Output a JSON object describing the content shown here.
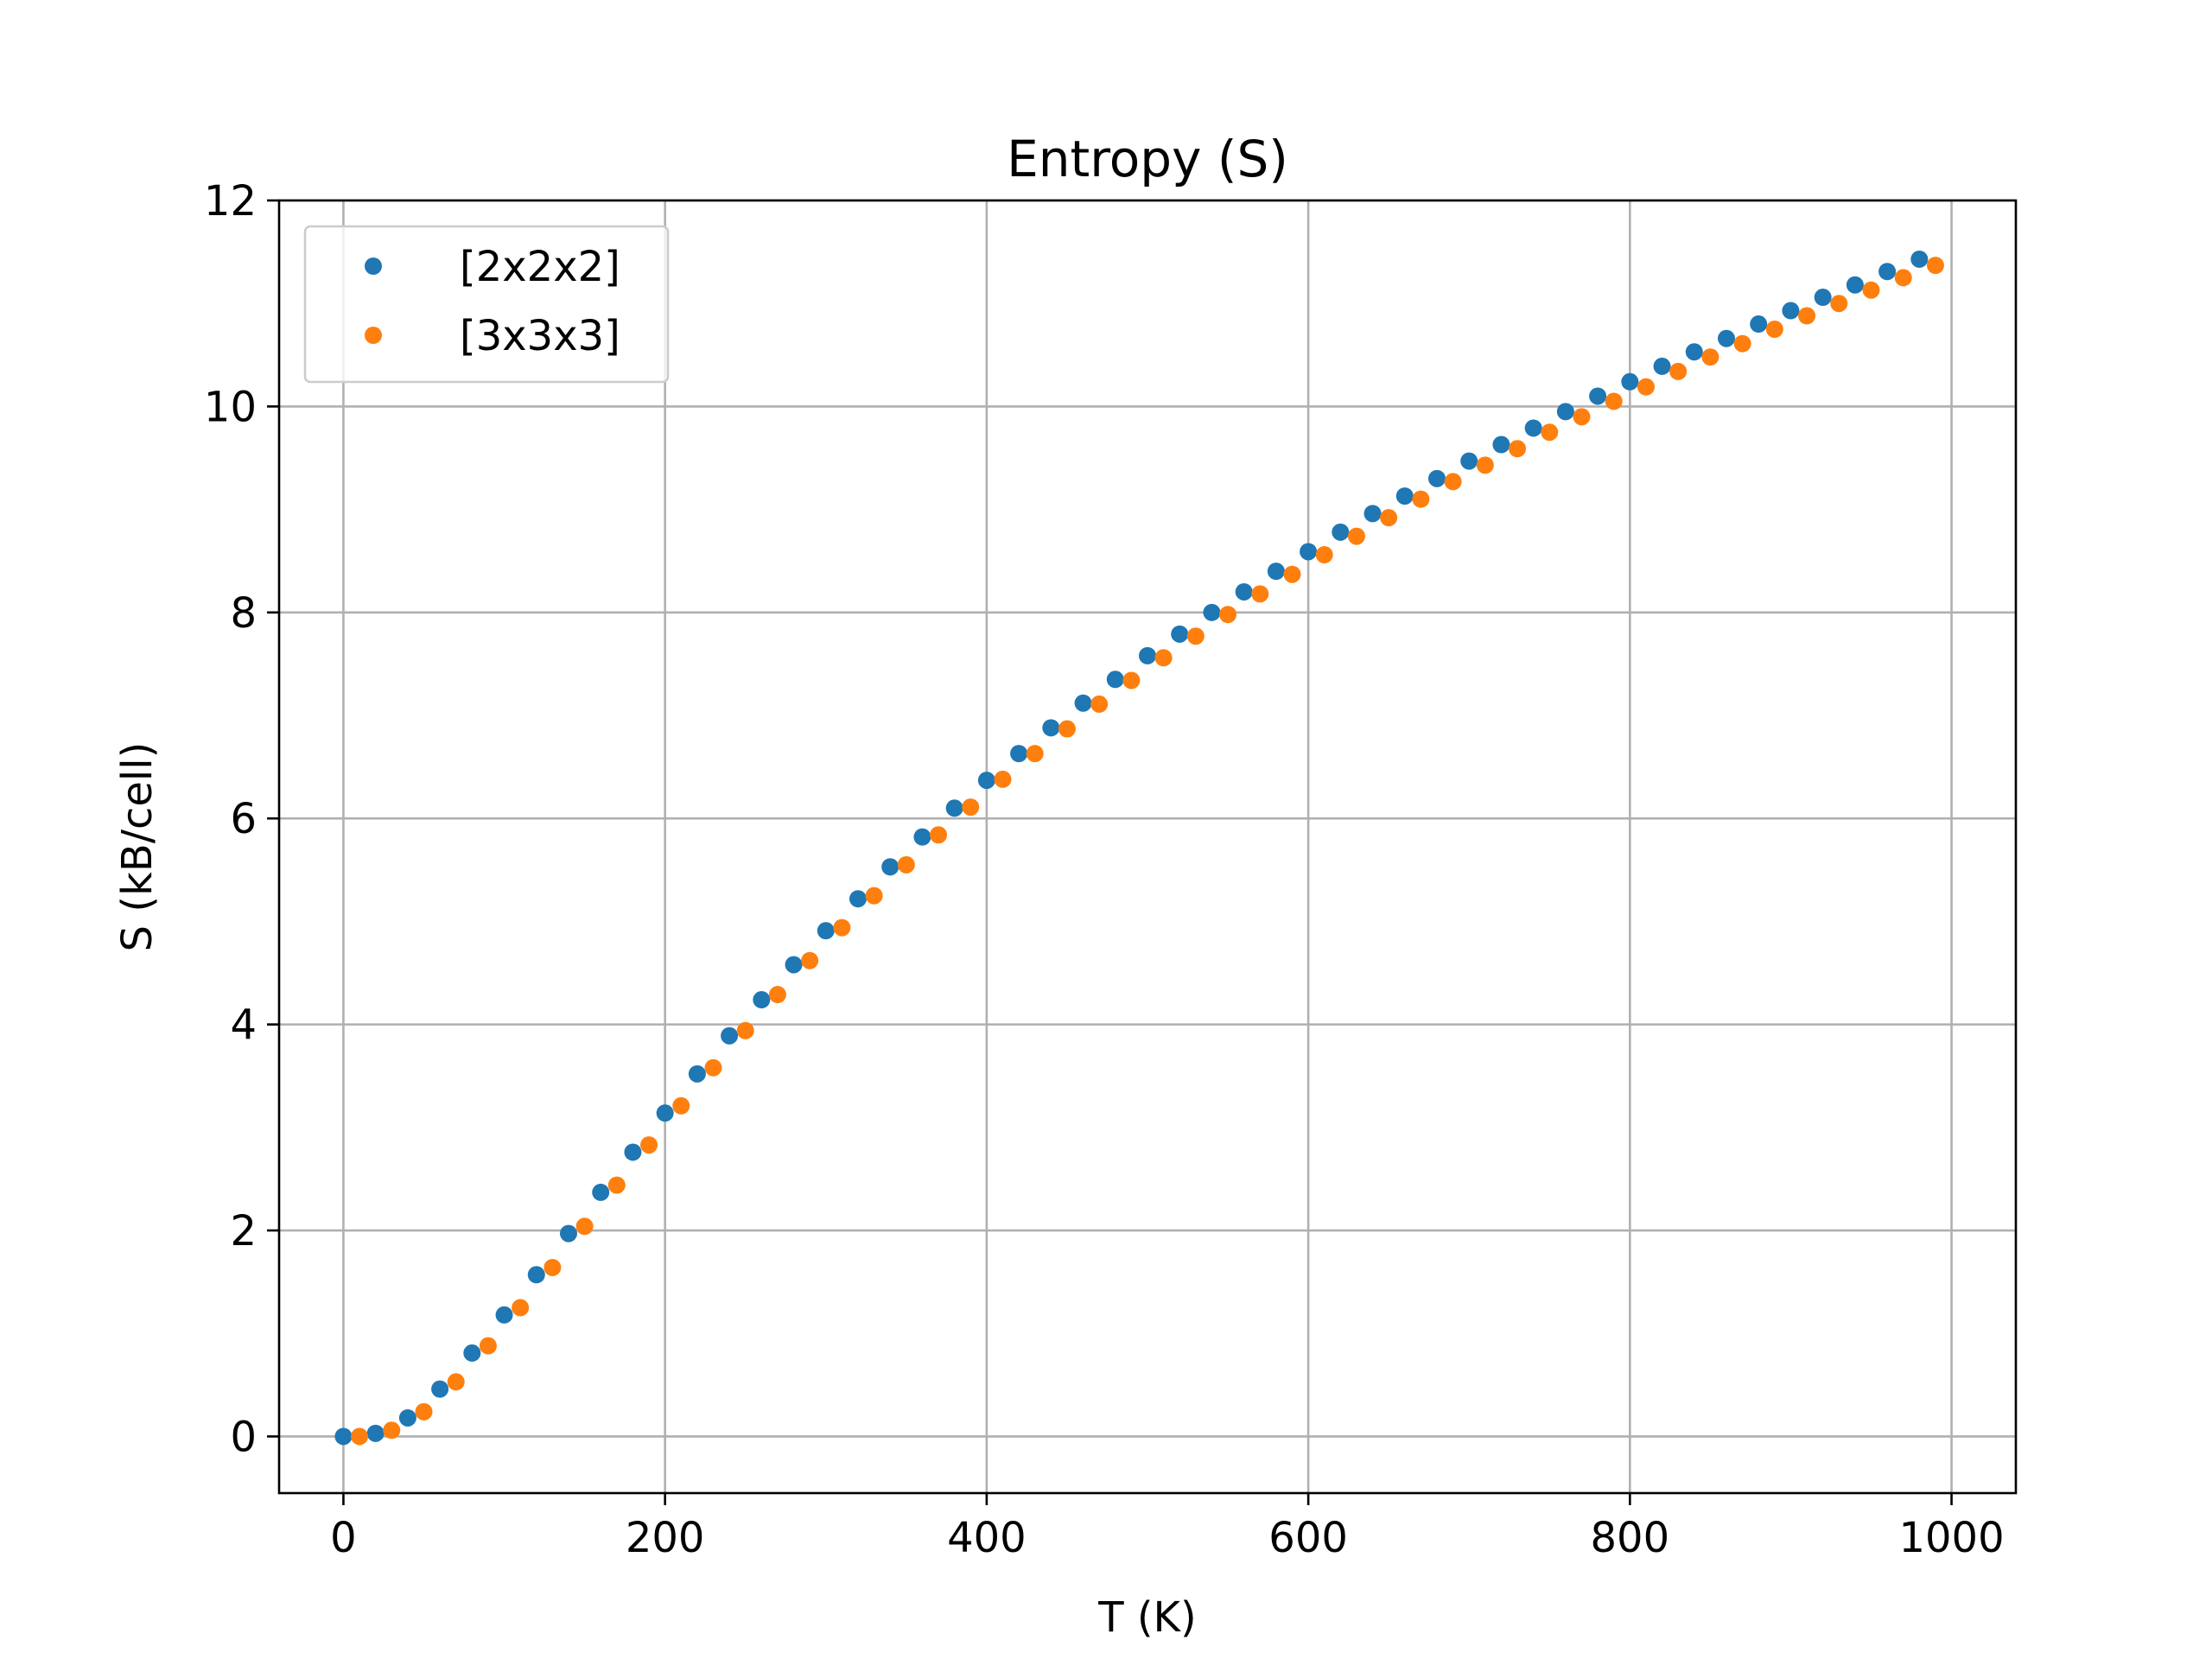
{
  "chart_data": {
    "type": "scatter",
    "title": "Entropy (S)",
    "xlabel": "T (K)",
    "ylabel": "S (kB/cell)",
    "xlim": [
      -40,
      1040
    ],
    "ylim": [
      -0.55,
      12
    ],
    "xticks": [
      0,
      200,
      400,
      600,
      800,
      1000
    ],
    "yticks": [
      0,
      2,
      4,
      6,
      8,
      10,
      12
    ],
    "grid": true,
    "legend_position": "top-left",
    "series": [
      {
        "name": "[2x2x2]",
        "color": "#1f77b4",
        "x": [
          0,
          20,
          40,
          60,
          80,
          100,
          120,
          140,
          160,
          180,
          200,
          220,
          240,
          260,
          280,
          300,
          320,
          340,
          360,
          380,
          400,
          420,
          440,
          460,
          480,
          500,
          520,
          540,
          560,
          580,
          600,
          620,
          640,
          660,
          680,
          700,
          720,
          740,
          760,
          780,
          800,
          820,
          840,
          860,
          880,
          900,
          920,
          940,
          960,
          980
        ],
        "y": [
          0.0,
          0.03,
          0.18,
          0.46,
          0.81,
          1.18,
          1.57,
          1.97,
          2.37,
          2.76,
          3.14,
          3.52,
          3.89,
          4.24,
          4.58,
          4.91,
          5.22,
          5.53,
          5.82,
          6.1,
          6.37,
          6.63,
          6.88,
          7.12,
          7.35,
          7.58,
          7.79,
          8.0,
          8.2,
          8.4,
          8.59,
          8.78,
          8.96,
          9.13,
          9.3,
          9.47,
          9.63,
          9.79,
          9.95,
          10.1,
          10.24,
          10.39,
          10.53,
          10.66,
          10.8,
          10.93,
          11.06,
          11.18,
          11.31,
          11.43
        ]
      },
      {
        "name": "[3x3x3]",
        "color": "#ff7f0e",
        "x": [
          10,
          30,
          50,
          70,
          90,
          110,
          130,
          150,
          170,
          190,
          210,
          230,
          250,
          270,
          290,
          310,
          330,
          350,
          370,
          390,
          410,
          430,
          450,
          470,
          490,
          510,
          530,
          550,
          570,
          590,
          610,
          630,
          650,
          670,
          690,
          710,
          730,
          750,
          770,
          790,
          810,
          830,
          850,
          870,
          890,
          910,
          930,
          950,
          970,
          990
        ],
        "y": [
          0.0,
          0.06,
          0.24,
          0.53,
          0.88,
          1.25,
          1.64,
          2.04,
          2.44,
          2.83,
          3.21,
          3.58,
          3.94,
          4.29,
          4.62,
          4.94,
          5.25,
          5.55,
          5.84,
          6.11,
          6.38,
          6.63,
          6.87,
          7.11,
          7.34,
          7.56,
          7.77,
          7.98,
          8.18,
          8.37,
          8.56,
          8.74,
          8.92,
          9.1,
          9.27,
          9.43,
          9.59,
          9.75,
          9.9,
          10.05,
          10.19,
          10.34,
          10.48,
          10.61,
          10.75,
          10.88,
          11.0,
          11.13,
          11.25,
          11.37
        ]
      }
    ]
  }
}
